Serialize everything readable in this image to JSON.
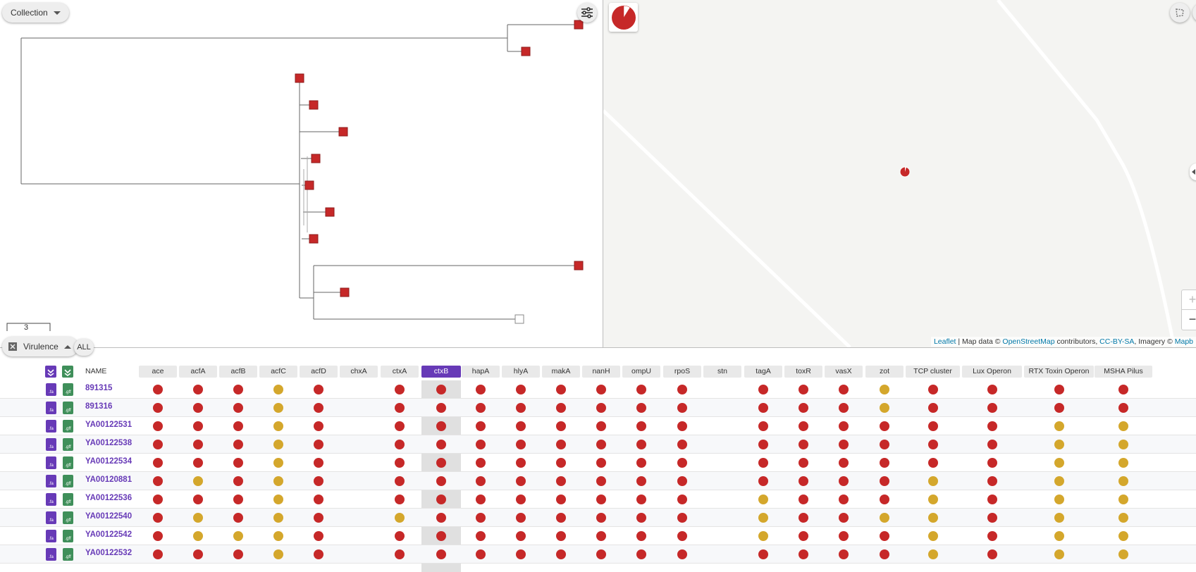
{
  "tree_panel": {
    "collection_label": "Collection",
    "scale_label": "3"
  },
  "map_panel": {
    "attribution": {
      "leaflet": "Leaflet",
      "map_data": " | Map data © ",
      "osm": "OpenStreetMap",
      "contributors": " contributors, ",
      "license": "CC-BY-SA",
      "imagery": ", Imagery © ",
      "provider": "Mapb"
    },
    "zoom_in": "+",
    "zoom_out": "−"
  },
  "table": {
    "view_label": "Virulence",
    "all_label": "ALL",
    "name_header": "NAME",
    "selected_column": "ctxB",
    "columns": [
      "ace",
      "acfA",
      "acfB",
      "acfC",
      "acfD",
      "chxA",
      "ctxA",
      "ctxB",
      "hapA",
      "hlyA",
      "makA",
      "nanH",
      "ompU",
      "rpoS",
      "stn",
      "tagA",
      "toxR",
      "vasX",
      "zot",
      "TCP cluster",
      "Lux Operon",
      "RTX Toxin Operon",
      "MSHA Pilus"
    ],
    "file_labels": {
      "fa": ".fa",
      "gff": ".gff"
    },
    "rows": [
      {
        "name": "891315",
        "values": [
          "r",
          "r",
          "r",
          "y",
          "r",
          "",
          "r",
          "r",
          "r",
          "r",
          "r",
          "r",
          "r",
          "r",
          "",
          "r",
          "r",
          "r",
          "y",
          "r",
          "r",
          "r",
          "r"
        ]
      },
      {
        "name": "891316",
        "values": [
          "r",
          "r",
          "r",
          "y",
          "r",
          "",
          "r",
          "r",
          "r",
          "r",
          "r",
          "r",
          "r",
          "r",
          "",
          "r",
          "r",
          "r",
          "y",
          "r",
          "r",
          "r",
          "r"
        ]
      },
      {
        "name": "YA00122531",
        "values": [
          "r",
          "r",
          "r",
          "y",
          "r",
          "",
          "r",
          "r",
          "r",
          "r",
          "r",
          "r",
          "r",
          "r",
          "",
          "r",
          "r",
          "r",
          "r",
          "r",
          "r",
          "y",
          "y"
        ]
      },
      {
        "name": "YA00122538",
        "values": [
          "r",
          "r",
          "r",
          "y",
          "r",
          "",
          "r",
          "r",
          "r",
          "r",
          "r",
          "r",
          "r",
          "r",
          "",
          "r",
          "r",
          "r",
          "r",
          "r",
          "r",
          "y",
          "y"
        ]
      },
      {
        "name": "YA00122534",
        "values": [
          "r",
          "r",
          "r",
          "y",
          "r",
          "",
          "r",
          "r",
          "r",
          "r",
          "r",
          "r",
          "r",
          "r",
          "",
          "r",
          "r",
          "r",
          "r",
          "r",
          "r",
          "y",
          "y"
        ]
      },
      {
        "name": "YA00120881",
        "values": [
          "r",
          "y",
          "r",
          "y",
          "r",
          "",
          "r",
          "r",
          "r",
          "r",
          "r",
          "r",
          "r",
          "r",
          "",
          "r",
          "r",
          "r",
          "r",
          "y",
          "r",
          "y",
          "y"
        ]
      },
      {
        "name": "YA00122536",
        "values": [
          "r",
          "r",
          "r",
          "y",
          "r",
          "",
          "r",
          "r",
          "r",
          "r",
          "r",
          "r",
          "r",
          "r",
          "",
          "y",
          "r",
          "r",
          "r",
          "y",
          "r",
          "y",
          "y"
        ]
      },
      {
        "name": "YA00122540",
        "values": [
          "r",
          "y",
          "r",
          "y",
          "r",
          "",
          "y",
          "r",
          "r",
          "r",
          "r",
          "r",
          "r",
          "r",
          "",
          "y",
          "r",
          "r",
          "y",
          "y",
          "r",
          "y",
          "y"
        ]
      },
      {
        "name": "YA00122542",
        "values": [
          "r",
          "y",
          "y",
          "y",
          "r",
          "",
          "r",
          "r",
          "r",
          "r",
          "r",
          "r",
          "r",
          "r",
          "",
          "y",
          "r",
          "r",
          "r",
          "y",
          "r",
          "y",
          "y"
        ]
      },
      {
        "name": "YA00122532",
        "values": [
          "r",
          "r",
          "r",
          "y",
          "r",
          "",
          "r",
          "r",
          "r",
          "r",
          "r",
          "r",
          "r",
          "r",
          "",
          "r",
          "r",
          "r",
          "r",
          "y",
          "r",
          "y",
          "y"
        ]
      }
    ]
  },
  "colors": {
    "present": "#c62828",
    "partial": "#d4a72c",
    "accent": "#673ab7",
    "gff": "#3f8f5a"
  }
}
